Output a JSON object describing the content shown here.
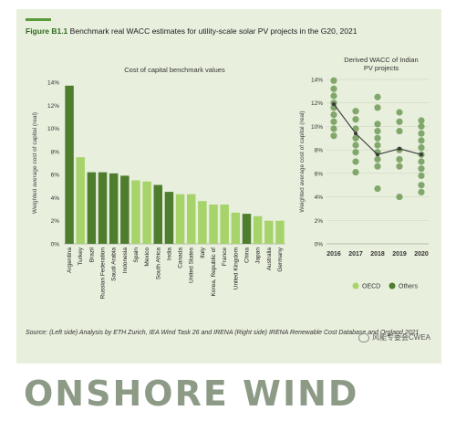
{
  "figure": {
    "label": "Figure B1.1",
    "title": "Benchmark real WACC estimates for utility-scale solar PV projects in the G20, 2021",
    "source": "Source: (Left side) Analysis by ETH Zurich, IEA Wind Task 26 and IRENA (Right side) IRENA Renewable Cost Database and Orgland,2021",
    "watermark": "风能专委会CWEA",
    "headline": "ONSHORE WIND"
  },
  "colors": {
    "panel": "#e8efdd",
    "dark_green": "#4e7d2e",
    "light_green": "#a6d46a",
    "point_green": "#6e9a56",
    "line": "#3a3a3a",
    "accent": "#5a9a3a"
  },
  "chart_data": [
    {
      "type": "bar",
      "title": "Cost of capital benchmark values",
      "ylabel": "Weighted average cost of capital (real)",
      "ylim": [
        0,
        14
      ],
      "yticks": [
        "0%",
        "2%",
        "4%",
        "6%",
        "8%",
        "10%",
        "12%",
        "14%"
      ],
      "categories": [
        "Argentina",
        "Turkey",
        "Brazil",
        "Russian Federation",
        "Saudi Arabia",
        "Indonesia",
        "Spain",
        "Mexico",
        "South Africa",
        "India",
        "Canada",
        "United States",
        "Italy",
        "Korea, Republic of",
        "France",
        "United Kingdom",
        "China",
        "Japan",
        "Australia",
        "Germany"
      ],
      "values": [
        13.7,
        7.5,
        6.2,
        6.2,
        6.1,
        5.9,
        5.5,
        5.4,
        5.1,
        4.5,
        4.3,
        4.3,
        3.7,
        3.4,
        3.4,
        2.7,
        2.6,
        2.4,
        2.0,
        2.0
      ],
      "groups": [
        "Others",
        "OECD",
        "Others",
        "Others",
        "Others",
        "Others",
        "OECD",
        "OECD",
        "Others",
        "Others",
        "OECD",
        "OECD",
        "OECD",
        "OECD",
        "OECD",
        "OECD",
        "Others",
        "OECD",
        "OECD",
        "OECD"
      ]
    },
    {
      "type": "scatter",
      "title_lines": [
        "Derived WACC of Indian",
        "PV projects"
      ],
      "ylabel": "Weighted average cost of capital (real)",
      "ylim": [
        0,
        14
      ],
      "yticks": [
        "0%",
        "2%",
        "4%",
        "6%",
        "8%",
        "10%",
        "12%",
        "14%"
      ],
      "categories": [
        "2016",
        "2017",
        "2018",
        "2019",
        "2020"
      ],
      "points": [
        [
          13.9,
          13.2,
          12.6,
          12.0,
          11.6,
          11.0,
          10.4,
          9.8,
          9.2
        ],
        [
          11.3,
          10.6,
          9.8,
          9.0,
          8.4,
          7.8,
          7.0,
          6.1
        ],
        [
          12.5,
          11.6,
          10.2,
          9.6,
          9.0,
          8.4,
          7.8,
          7.2,
          6.6,
          4.7
        ],
        [
          11.2,
          10.4,
          9.6,
          8.0,
          7.2,
          6.6,
          4.0
        ],
        [
          10.5,
          10.0,
          9.4,
          8.8,
          8.2,
          7.6,
          7.0,
          6.4,
          5.8,
          5.0,
          4.4
        ]
      ],
      "average": [
        11.9,
        9.4,
        7.6,
        8.1,
        7.6
      ],
      "legend": [
        "OECD",
        "Others"
      ]
    }
  ]
}
